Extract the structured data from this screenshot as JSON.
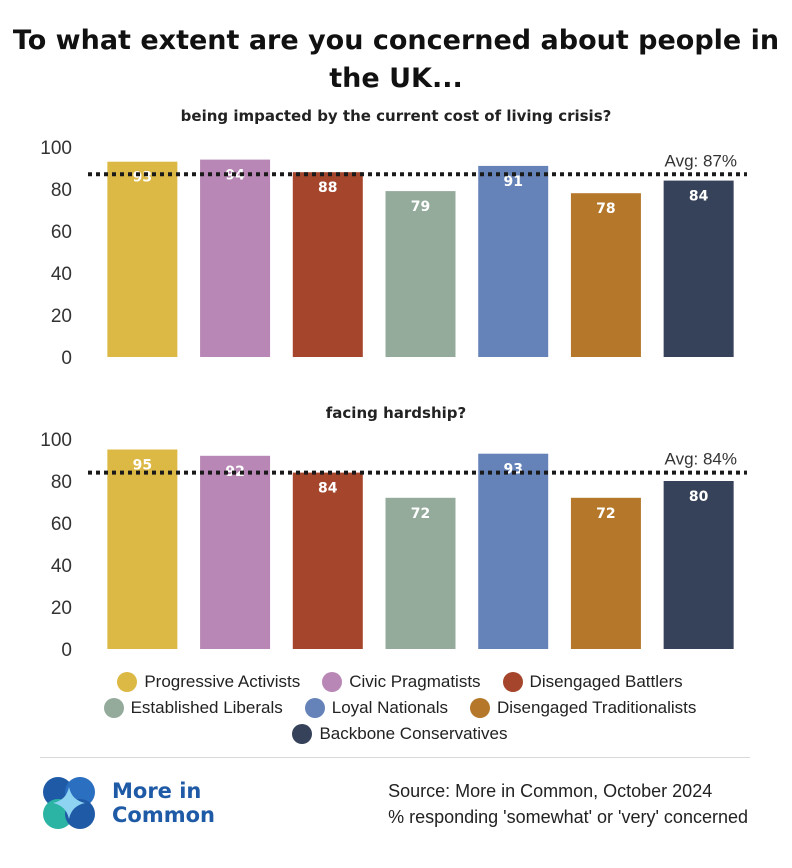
{
  "title": {
    "line1": "To what extent are you concerned about people in",
    "line2": "the UK..."
  },
  "colors": {
    "progressive_activists": "#dcb844",
    "civic_pragmatists": "#b887b5",
    "disengaged_battlers": "#a5452b",
    "established_liberals": "#94ab9c",
    "loyal_nationals": "#6683b9",
    "disengaged_traditionalists": "#b5782a",
    "backbone_conservatives": "#36415a"
  },
  "chart_data": [
    {
      "type": "bar",
      "title": "being impacted by the current cost of living crisis?",
      "categories": [
        "Progressive Activists",
        "Civic Pragmatists",
        "Disengaged Battlers",
        "Established Liberals",
        "Loyal Nationals",
        "Disengaged Traditionalists",
        "Backbone Conservatives"
      ],
      "values": [
        93,
        94,
        88,
        79,
        91,
        78,
        84
      ],
      "average": 87,
      "average_label": "Avg: 87%",
      "ylim": [
        0,
        100
      ],
      "yticks": [
        "0",
        "20",
        "40",
        "60",
        "80",
        "100"
      ],
      "grid": false
    },
    {
      "type": "bar",
      "title": "facing hardship?",
      "categories": [
        "Progressive Activists",
        "Civic Pragmatists",
        "Disengaged Battlers",
        "Established Liberals",
        "Loyal Nationals",
        "Disengaged Traditionalists",
        "Backbone Conservatives"
      ],
      "values": [
        95,
        92,
        84,
        72,
        93,
        72,
        80
      ],
      "average": 84,
      "average_label": "Avg: 84%",
      "ylim": [
        0,
        100
      ],
      "yticks": [
        "0",
        "20",
        "40",
        "60",
        "80",
        "100"
      ],
      "grid": false
    }
  ],
  "legend": {
    "placement": "bottom",
    "rows": [
      [
        {
          "label": "Progressive Activists",
          "color": "#dcb844"
        },
        {
          "label": "Civic Pragmatists",
          "color": "#b887b5"
        },
        {
          "label": "Disengaged Battlers",
          "color": "#a5452b"
        }
      ],
      [
        {
          "label": "Established Liberals",
          "color": "#94ab9c"
        },
        {
          "label": "Loyal Nationals",
          "color": "#6683b9"
        },
        {
          "label": "Disengaged Traditionalists",
          "color": "#b5782a"
        }
      ],
      [
        {
          "label": "Backbone Conservatives",
          "color": "#36415a"
        }
      ]
    ]
  },
  "logo": {
    "line1": "More in",
    "line2": "Common",
    "icon": "more-in-common-logo-icon"
  },
  "source": {
    "line1": "Source: More in Common, October 2024",
    "line2": "% responding 'somewhat' or 'very' concerned"
  }
}
